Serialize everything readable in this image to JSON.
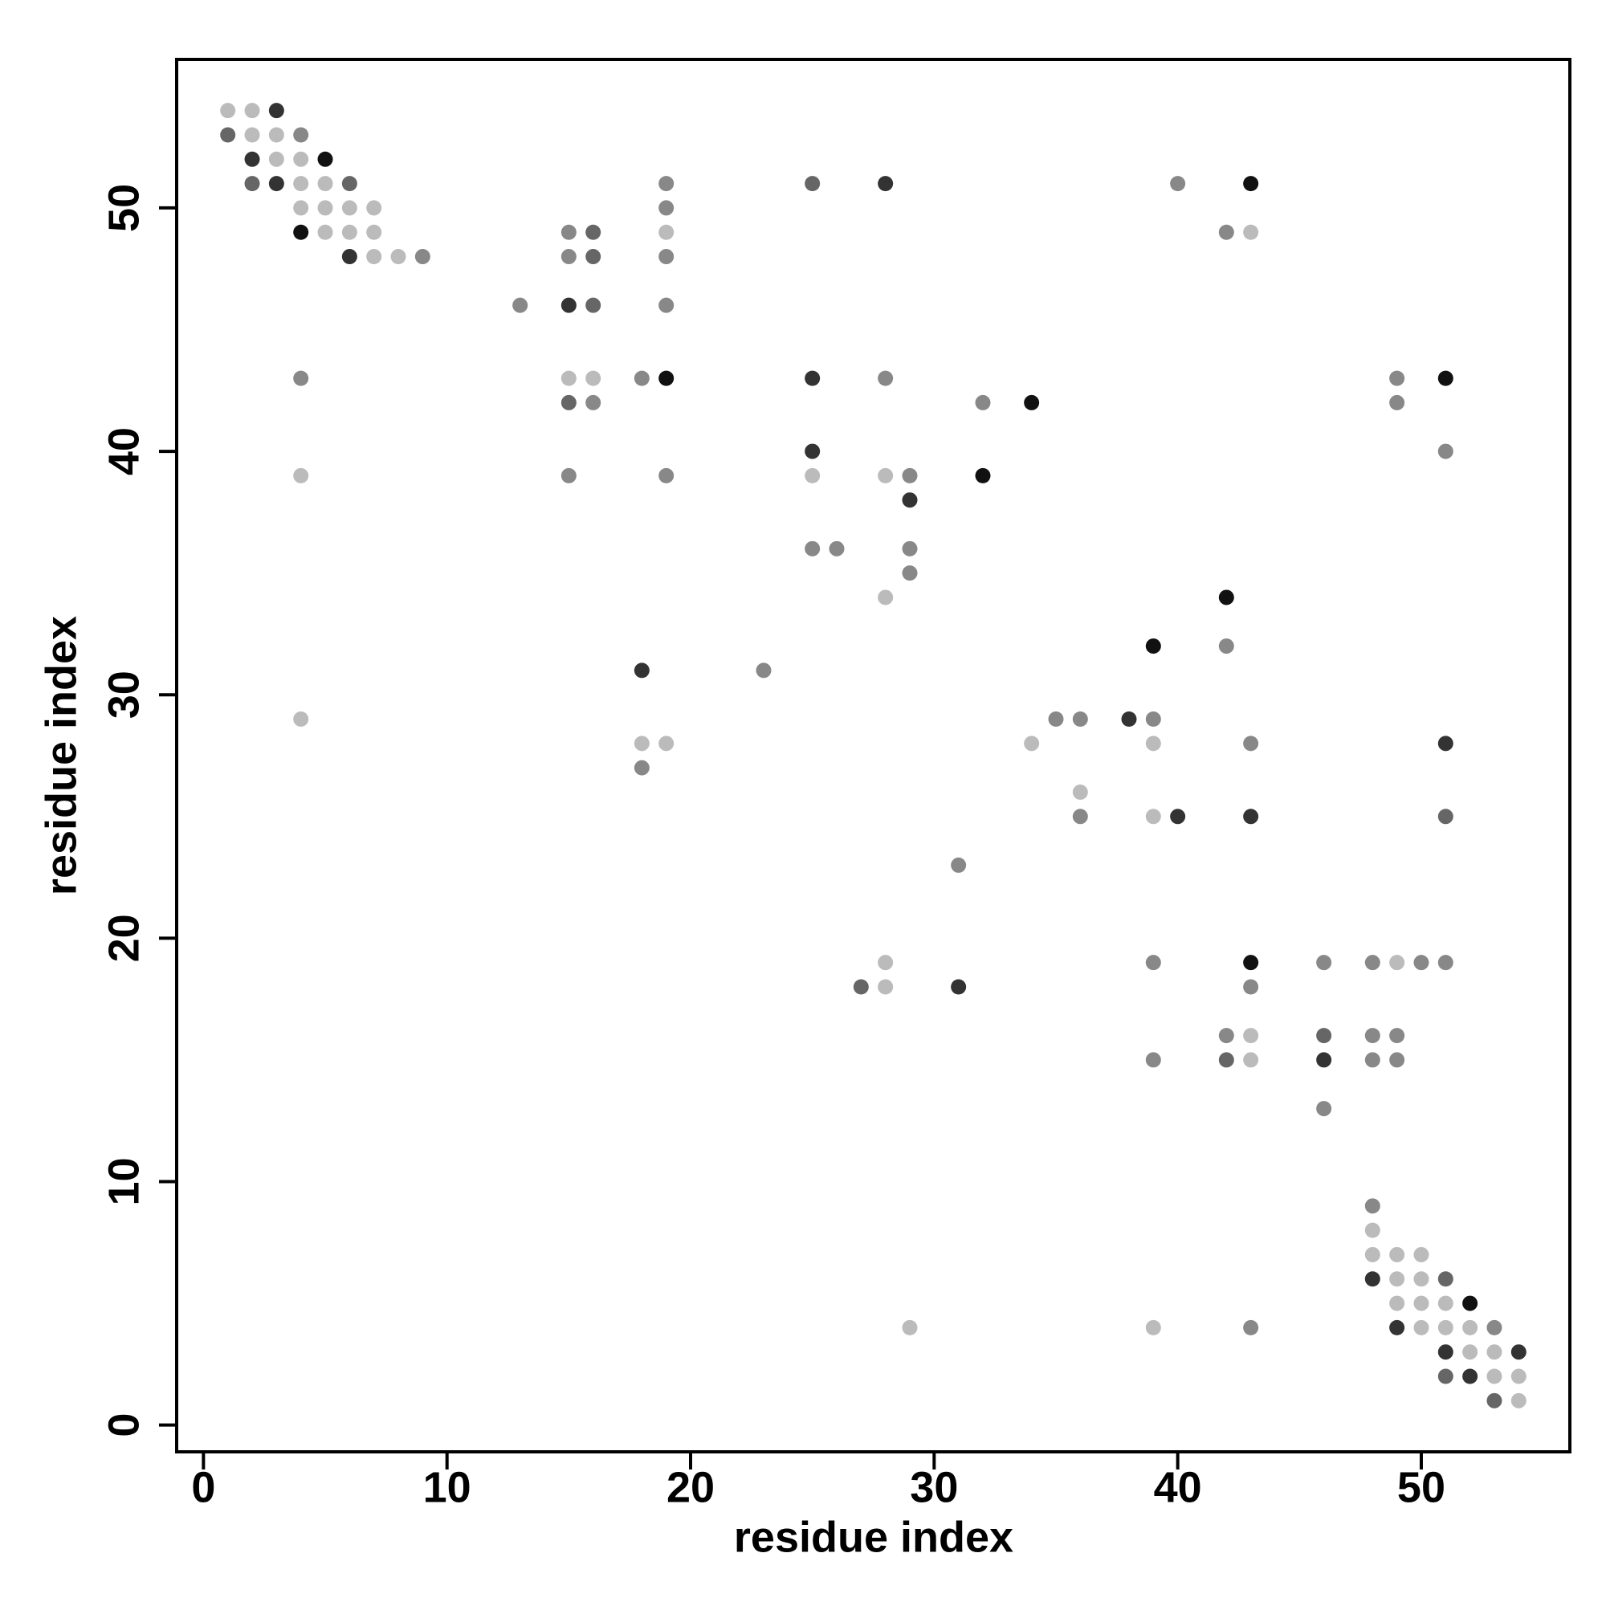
{
  "chart_data": {
    "type": "scatter",
    "xlabel": "residue index",
    "ylabel": "residue index",
    "xlim": [
      -1.1,
      56.1
    ],
    "ylim": [
      -1.1,
      56.1
    ],
    "xticks": [
      0,
      10,
      20,
      30,
      40,
      50
    ],
    "yticks": [
      0,
      10,
      20,
      30,
      40,
      50
    ],
    "x": [
      1,
      2,
      3,
      1,
      2,
      3,
      4,
      2,
      3,
      4,
      5,
      2,
      3,
      4,
      5,
      6,
      19,
      25,
      28,
      40,
      43,
      4,
      5,
      6,
      7,
      19,
      4,
      5,
      6,
      7,
      15,
      16,
      19,
      42,
      43,
      6,
      7,
      8,
      9,
      15,
      16,
      19,
      13,
      15,
      16,
      19,
      4,
      15,
      16,
      18,
      19,
      25,
      28,
      49,
      51,
      15,
      16,
      32,
      34,
      49,
      25,
      51,
      4,
      15,
      19,
      25,
      28,
      29,
      32,
      29,
      25,
      26,
      29,
      29,
      28,
      42,
      39,
      42,
      18,
      23,
      4,
      35,
      36,
      38,
      39,
      18,
      19,
      34,
      39,
      43,
      51,
      18,
      36,
      36,
      39,
      40,
      43,
      51,
      31,
      28,
      39,
      43,
      46,
      48,
      49,
      50,
      51,
      27,
      28,
      31,
      43,
      42,
      43,
      46,
      48,
      49,
      39,
      42,
      43,
      46,
      48,
      49,
      46,
      48,
      48,
      48,
      49,
      50,
      48,
      49,
      50,
      51,
      49,
      50,
      51,
      52,
      29,
      39,
      43,
      49,
      50,
      51,
      52,
      53,
      51,
      52,
      53,
      54,
      51,
      52,
      53,
      54,
      53,
      54
    ],
    "y": [
      54,
      54,
      54,
      53,
      53,
      53,
      53,
      52,
      52,
      52,
      52,
      51,
      51,
      51,
      51,
      51,
      51,
      51,
      51,
      51,
      51,
      50,
      50,
      50,
      50,
      50,
      49,
      49,
      49,
      49,
      49,
      49,
      49,
      49,
      49,
      48,
      48,
      48,
      48,
      48,
      48,
      48,
      46,
      46,
      46,
      46,
      43,
      43,
      43,
      43,
      43,
      43,
      43,
      43,
      43,
      42,
      42,
      42,
      42,
      42,
      40,
      40,
      39,
      39,
      39,
      39,
      39,
      39,
      39,
      38,
      36,
      36,
      36,
      35,
      34,
      34,
      32,
      32,
      31,
      31,
      29,
      29,
      29,
      29,
      29,
      28,
      28,
      28,
      28,
      28,
      28,
      27,
      26,
      25,
      25,
      25,
      25,
      25,
      23,
      19,
      19,
      19,
      19,
      19,
      19,
      19,
      19,
      18,
      18,
      18,
      18,
      16,
      16,
      16,
      16,
      16,
      15,
      15,
      15,
      15,
      15,
      15,
      13,
      9,
      8,
      7,
      7,
      7,
      6,
      6,
      6,
      6,
      5,
      5,
      5,
      5,
      4,
      4,
      4,
      4,
      4,
      4,
      4,
      4,
      3,
      3,
      3,
      3,
      2,
      2,
      2,
      2,
      1,
      1
    ],
    "colors": [
      "#bbb",
      "#bbb",
      "#333",
      "#666",
      "#bbb",
      "#bbb",
      "#888",
      "#333",
      "#bbb",
      "#bbb",
      "#111",
      "#666",
      "#333",
      "#bbb",
      "#bbb",
      "#666",
      "#888",
      "#666",
      "#333",
      "#888",
      "#111",
      "#bbb",
      "#bbb",
      "#bbb",
      "#bbb",
      "#888",
      "#111",
      "#bbb",
      "#bbb",
      "#bbb",
      "#888",
      "#666",
      "#bbb",
      "#888",
      "#bbb",
      "#333",
      "#bbb",
      "#bbb",
      "#888",
      "#888",
      "#666",
      "#888",
      "#888",
      "#333",
      "#666",
      "#888",
      "#888",
      "#bbb",
      "#bbb",
      "#888",
      "#111",
      "#333",
      "#888",
      "#888",
      "#111",
      "#666",
      "#888",
      "#888",
      "#111",
      "#888",
      "#333",
      "#888",
      "#bbb",
      "#888",
      "#888",
      "#bbb",
      "#bbb",
      "#888",
      "#111",
      "#333",
      "#888",
      "#888",
      "#888",
      "#888",
      "#bbb",
      "#111",
      "#111",
      "#888",
      "#333",
      "#888",
      "#bbb",
      "#888",
      "#888",
      "#333",
      "#888",
      "#bbb",
      "#bbb",
      "#bbb",
      "#bbb",
      "#888",
      "#333",
      "#888",
      "#bbb",
      "#888",
      "#bbb",
      "#333",
      "#333",
      "#666",
      "#888",
      "#bbb",
      "#888",
      "#111",
      "#888",
      "#888",
      "#bbb",
      "#888",
      "#888",
      "#666",
      "#bbb",
      "#333",
      "#888",
      "#888",
      "#bbb",
      "#666",
      "#888",
      "#888",
      "#888",
      "#666",
      "#bbb",
      "#333",
      "#888",
      "#888",
      "#888",
      "#888",
      "#bbb",
      "#bbb",
      "#bbb",
      "#bbb",
      "#333",
      "#bbb",
      "#bbb",
      "#666",
      "#bbb",
      "#bbb",
      "#bbb",
      "#111",
      "#bbb",
      "#bbb",
      "#888",
      "#333",
      "#bbb",
      "#bbb",
      "#bbb",
      "#888",
      "#333",
      "#bbb",
      "#bbb",
      "#333",
      "#666",
      "#333",
      "#bbb",
      "#bbb",
      "#666",
      "#bbb"
    ]
  }
}
